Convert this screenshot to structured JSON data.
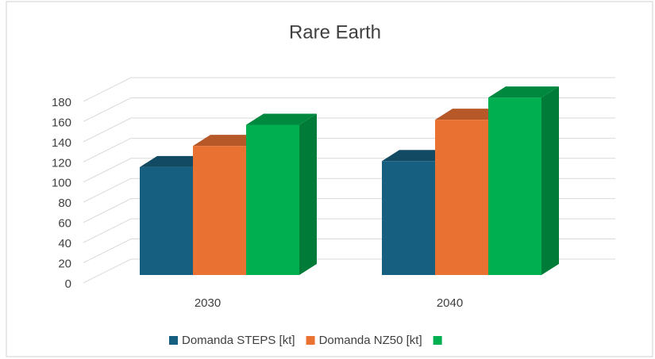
{
  "chart_data": {
    "type": "bar3d",
    "title": "Rare Earth",
    "categories": [
      "2030",
      "2040"
    ],
    "series": [
      {
        "name": "Domanda STEPS [kt]",
        "color": "#175f80",
        "values": [
          107,
          113
        ]
      },
      {
        "name": "Domanda NZ50 [kt]",
        "color": "#e97132",
        "values": [
          128,
          154
        ]
      },
      {
        "name": null,
        "color": "#00b050",
        "values": [
          149,
          176
        ]
      }
    ],
    "ylim": [
      0,
      180
    ],
    "yticks": [
      0,
      20,
      40,
      60,
      80,
      100,
      120,
      140,
      160,
      180
    ],
    "grid": true,
    "legend": "bottom"
  }
}
